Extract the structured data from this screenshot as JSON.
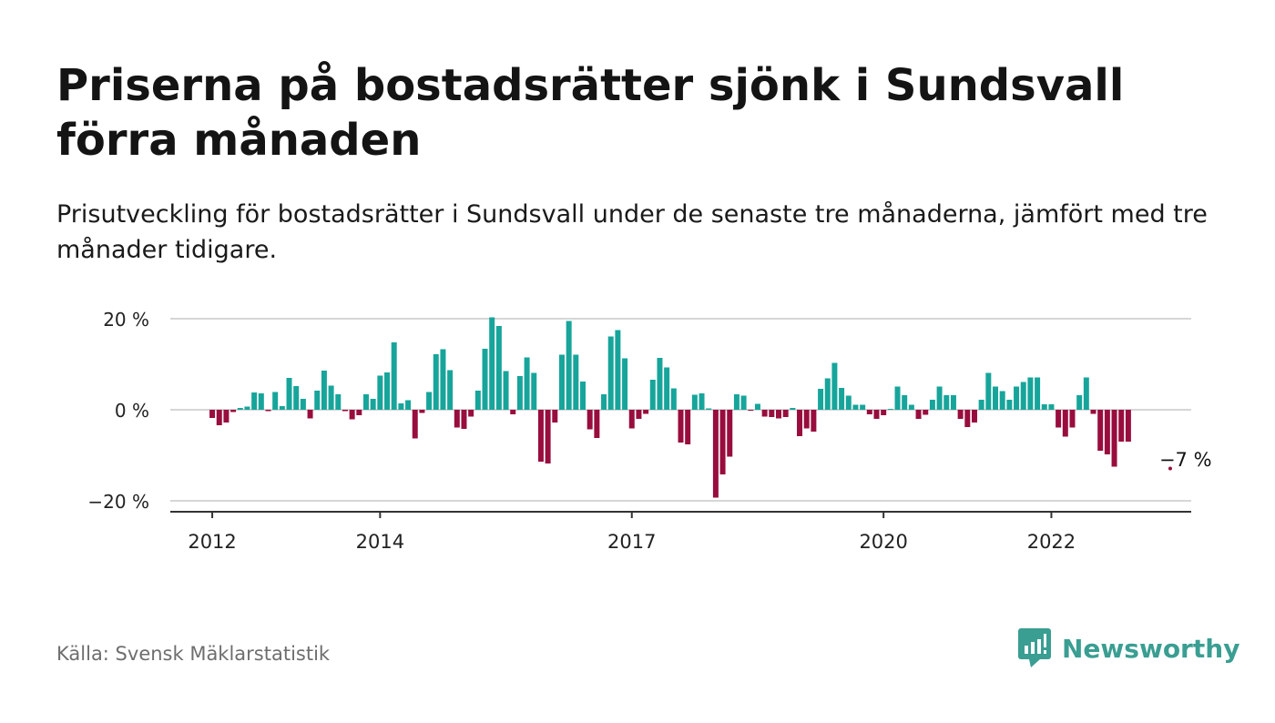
{
  "header": {
    "title": "Priserna på bostadsrätter sjönk i Sundsvall förra månaden",
    "subtitle": "Prisutveckling för bostadsrätter i Sundsvall under de senaste tre månaderna, jämfört med tre månader tidigare."
  },
  "footer": {
    "source": "Källa: Svensk Mäklarstatistik",
    "brand": "Newsworthy"
  },
  "colors": {
    "positive": "#17a59b",
    "negative": "#980d3d",
    "grid": "#d6d6d6",
    "axis": "#333333",
    "brand": "#3a9e92"
  },
  "chart_data": {
    "type": "bar",
    "x_start": "2011-07",
    "x_end": "2023-09",
    "x_ticks": [
      {
        "label": "2012",
        "date": "2012-01"
      },
      {
        "label": "2014",
        "date": "2014-01"
      },
      {
        "label": "2017",
        "date": "2017-01"
      },
      {
        "label": "2020",
        "date": "2020-01"
      },
      {
        "label": "2022",
        "date": "2022-01"
      }
    ],
    "y_ticks": [
      {
        "label": "20 %",
        "value": 20
      },
      {
        "label": "0 %",
        "value": 0
      },
      {
        "label": "−20 %",
        "value": -20
      }
    ],
    "ylim": [
      -22,
      20
    ],
    "grid": true,
    "annotation": {
      "label": "−7 %",
      "date": "2023-06",
      "value": -12.5
    },
    "series": [
      {
        "values": [
          {
            "date": "2012-01",
            "value": -1.8
          },
          {
            "date": "2012-02",
            "value": -3.4
          },
          {
            "date": "2012-03",
            "value": -2.8
          },
          {
            "date": "2012-04",
            "value": -0.5
          },
          {
            "date": "2012-05",
            "value": 0.4
          },
          {
            "date": "2012-06",
            "value": 0.7
          },
          {
            "date": "2012-07",
            "value": 3.8
          },
          {
            "date": "2012-08",
            "value": 3.6
          },
          {
            "date": "2012-09",
            "value": -0.3
          },
          {
            "date": "2012-10",
            "value": 3.9
          },
          {
            "date": "2012-11",
            "value": 0.8
          },
          {
            "date": "2012-12",
            "value": 7.0
          },
          {
            "date": "2013-01",
            "value": 5.2
          },
          {
            "date": "2013-02",
            "value": 2.4
          },
          {
            "date": "2013-03",
            "value": -1.9
          },
          {
            "date": "2013-04",
            "value": 4.2
          },
          {
            "date": "2013-05",
            "value": 8.6
          },
          {
            "date": "2013-06",
            "value": 5.3
          },
          {
            "date": "2013-07",
            "value": 3.4
          },
          {
            "date": "2013-08",
            "value": -0.3
          },
          {
            "date": "2013-09",
            "value": -2.1
          },
          {
            "date": "2013-10",
            "value": -1.2
          },
          {
            "date": "2013-11",
            "value": 3.4
          },
          {
            "date": "2013-12",
            "value": 2.4
          },
          {
            "date": "2014-01",
            "value": 7.5
          },
          {
            "date": "2014-02",
            "value": 8.2
          },
          {
            "date": "2014-03",
            "value": 14.8
          },
          {
            "date": "2014-04",
            "value": 1.4
          },
          {
            "date": "2014-05",
            "value": 2.1
          },
          {
            "date": "2014-06",
            "value": -6.3
          },
          {
            "date": "2014-07",
            "value": -0.7
          },
          {
            "date": "2014-08",
            "value": 3.9
          },
          {
            "date": "2014-09",
            "value": 12.2
          },
          {
            "date": "2014-10",
            "value": 13.3
          },
          {
            "date": "2014-11",
            "value": 8.7
          },
          {
            "date": "2014-12",
            "value": -3.9
          },
          {
            "date": "2015-01",
            "value": -4.2
          },
          {
            "date": "2015-02",
            "value": -1.5
          },
          {
            "date": "2015-03",
            "value": 4.2
          },
          {
            "date": "2015-04",
            "value": 13.4
          },
          {
            "date": "2015-05",
            "value": 20.3
          },
          {
            "date": "2015-06",
            "value": 18.4
          },
          {
            "date": "2015-07",
            "value": 8.5
          },
          {
            "date": "2015-08",
            "value": -1.0
          },
          {
            "date": "2015-09",
            "value": 7.4
          },
          {
            "date": "2015-10",
            "value": 11.5
          },
          {
            "date": "2015-11",
            "value": 8.1
          },
          {
            "date": "2015-12",
            "value": -11.4
          },
          {
            "date": "2016-01",
            "value": -11.8
          },
          {
            "date": "2016-02",
            "value": -2.8
          },
          {
            "date": "2016-03",
            "value": 12.1
          },
          {
            "date": "2016-04",
            "value": 19.5
          },
          {
            "date": "2016-05",
            "value": 12.1
          },
          {
            "date": "2016-06",
            "value": 6.2
          },
          {
            "date": "2016-07",
            "value": -4.3
          },
          {
            "date": "2016-08",
            "value": -6.2
          },
          {
            "date": "2016-09",
            "value": 3.4
          },
          {
            "date": "2016-10",
            "value": 16.1
          },
          {
            "date": "2016-11",
            "value": 17.5
          },
          {
            "date": "2016-12",
            "value": 11.3
          },
          {
            "date": "2017-01",
            "value": -4.1
          },
          {
            "date": "2017-02",
            "value": -2.0
          },
          {
            "date": "2017-03",
            "value": -0.9
          },
          {
            "date": "2017-04",
            "value": 6.6
          },
          {
            "date": "2017-05",
            "value": 11.4
          },
          {
            "date": "2017-06",
            "value": 9.3
          },
          {
            "date": "2017-07",
            "value": 4.7
          },
          {
            "date": "2017-08",
            "value": -7.2
          },
          {
            "date": "2017-09",
            "value": -7.6
          },
          {
            "date": "2017-10",
            "value": 3.3
          },
          {
            "date": "2017-11",
            "value": 3.6
          },
          {
            "date": "2017-12",
            "value": 0.3
          },
          {
            "date": "2018-01",
            "value": -19.3
          },
          {
            "date": "2018-02",
            "value": -14.2
          },
          {
            "date": "2018-03",
            "value": -10.3
          },
          {
            "date": "2018-04",
            "value": 3.4
          },
          {
            "date": "2018-05",
            "value": 3.1
          },
          {
            "date": "2018-06",
            "value": -0.2
          },
          {
            "date": "2018-07",
            "value": 1.3
          },
          {
            "date": "2018-08",
            "value": -1.5
          },
          {
            "date": "2018-09",
            "value": -1.6
          },
          {
            "date": "2018-10",
            "value": -1.9
          },
          {
            "date": "2018-11",
            "value": -1.6
          },
          {
            "date": "2018-12",
            "value": 0.4
          },
          {
            "date": "2019-01",
            "value": -5.8
          },
          {
            "date": "2019-02",
            "value": -4.1
          },
          {
            "date": "2019-03",
            "value": -4.8
          },
          {
            "date": "2019-04",
            "value": 4.6
          },
          {
            "date": "2019-05",
            "value": 6.9
          },
          {
            "date": "2019-06",
            "value": 10.3
          },
          {
            "date": "2019-07",
            "value": 4.8
          },
          {
            "date": "2019-08",
            "value": 3.1
          },
          {
            "date": "2019-09",
            "value": 1.1
          },
          {
            "date": "2019-10",
            "value": 1.1
          },
          {
            "date": "2019-11",
            "value": -1.0
          },
          {
            "date": "2019-12",
            "value": -2.0
          },
          {
            "date": "2020-01",
            "value": -1.2
          },
          {
            "date": "2020-02",
            "value": 0.2
          },
          {
            "date": "2020-03",
            "value": 5.1
          },
          {
            "date": "2020-04",
            "value": 3.2
          },
          {
            "date": "2020-05",
            "value": 1.1
          },
          {
            "date": "2020-06",
            "value": -2.0
          },
          {
            "date": "2020-07",
            "value": -1.1
          },
          {
            "date": "2020-08",
            "value": 2.2
          },
          {
            "date": "2020-09",
            "value": 5.1
          },
          {
            "date": "2020-10",
            "value": 3.2
          },
          {
            "date": "2020-11",
            "value": 3.2
          },
          {
            "date": "2020-12",
            "value": -2.0
          },
          {
            "date": "2021-01",
            "value": -3.8
          },
          {
            "date": "2021-02",
            "value": -2.8
          },
          {
            "date": "2021-03",
            "value": 2.2
          },
          {
            "date": "2021-04",
            "value": 8.1
          },
          {
            "date": "2021-05",
            "value": 5.1
          },
          {
            "date": "2021-06",
            "value": 4.1
          },
          {
            "date": "2021-07",
            "value": 2.2
          },
          {
            "date": "2021-08",
            "value": 5.1
          },
          {
            "date": "2021-09",
            "value": 6.1
          },
          {
            "date": "2021-10",
            "value": 7.1
          },
          {
            "date": "2021-11",
            "value": 7.1
          },
          {
            "date": "2021-12",
            "value": 1.2
          },
          {
            "date": "2022-01",
            "value": 1.2
          },
          {
            "date": "2022-02",
            "value": -3.9
          },
          {
            "date": "2022-03",
            "value": -5.9
          },
          {
            "date": "2022-04",
            "value": -3.9
          },
          {
            "date": "2022-05",
            "value": 3.2
          },
          {
            "date": "2022-06",
            "value": 7.1
          },
          {
            "date": "2022-07",
            "value": -0.9
          },
          {
            "date": "2022-08",
            "value": -9.0
          },
          {
            "date": "2022-09",
            "value": -9.8
          },
          {
            "date": "2022-10",
            "value": -12.5
          },
          {
            "date": "2022-11",
            "value": -7.0
          },
          {
            "date": "2022-12",
            "value": -7.0
          }
        ]
      }
    ]
  }
}
